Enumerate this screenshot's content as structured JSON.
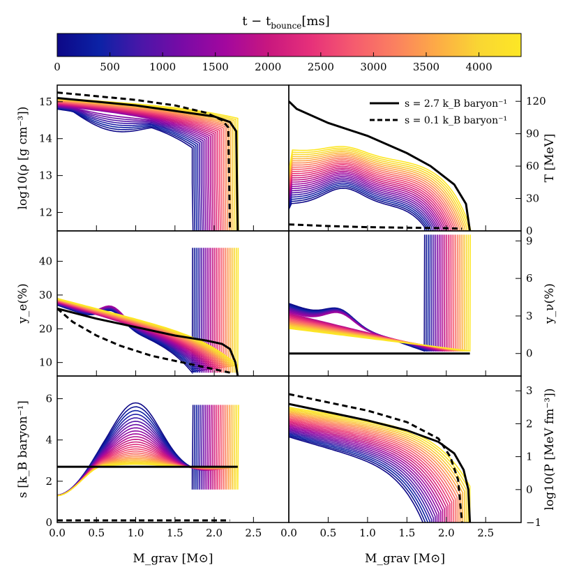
{
  "colorbar": {
    "title_prefix": "t − t",
    "title_sub": "bounce",
    "title_suffix": "[ms]",
    "range": [
      0,
      4400
    ],
    "ticks": [
      "0",
      "500",
      "1000",
      "1500",
      "2000",
      "2500",
      "3000",
      "3500",
      "4000"
    ],
    "tick_values": [
      0,
      500,
      1000,
      1500,
      2000,
      2500,
      3000,
      3500,
      4000
    ],
    "colors": [
      "#0d0887",
      "#0c22a6",
      "#4b16a8",
      "#7a0aa6",
      "#a3089e",
      "#c8177f",
      "#e6307a",
      "#f55a6f",
      "#fb8060",
      "#fdab46",
      "#f9d633",
      "#fde725"
    ]
  },
  "legend": {
    "entries": [
      {
        "label": "s = 2.7 k_B baryon⁻¹",
        "style": "solid"
      },
      {
        "label": "s = 0.1 k_B baryon⁻¹",
        "style": "dashed"
      }
    ]
  },
  "axes": {
    "xlabel": "M_grav [M⊙]",
    "x_ticks": [
      "0.0",
      "0.5",
      "1.0",
      "1.5",
      "2.0",
      "2.5"
    ],
    "x_tick_values": [
      0.0,
      0.5,
      1.0,
      1.5,
      2.0,
      2.5
    ],
    "xlim": [
      0,
      2.95
    ]
  },
  "chart_data": [
    {
      "type": "line",
      "panel": "top-left",
      "ylabel": "log10(ρ [g cm⁻³])",
      "ylim": [
        11.5,
        15.45
      ],
      "y_ticks": [
        "12",
        "13",
        "14",
        "15"
      ],
      "y_tick_values": [
        12,
        13,
        14,
        15
      ],
      "series": [
        {
          "style": "solid",
          "x": [
            0,
            0.5,
            1.0,
            1.5,
            2.0,
            2.2,
            2.28,
            2.3
          ],
          "y": [
            15.1,
            15.0,
            14.9,
            14.75,
            14.6,
            14.45,
            14.2,
            11.5
          ]
        },
        {
          "style": "dashed",
          "x": [
            0,
            0.5,
            1.0,
            1.5,
            1.9,
            2.1,
            2.18,
            2.2
          ],
          "y": [
            15.25,
            15.15,
            15.05,
            14.9,
            14.7,
            14.5,
            14.3,
            11.5
          ]
        }
      ]
    },
    {
      "type": "line",
      "panel": "top-right",
      "ylabel": "T [MeV]",
      "ylim": [
        0,
        135
      ],
      "y_ticks": [
        "0",
        "30",
        "60",
        "90",
        "120"
      ],
      "y_tick_values": [
        0,
        30,
        60,
        90,
        120
      ],
      "series": [
        {
          "style": "solid",
          "x": [
            0,
            0.1,
            0.5,
            1.0,
            1.5,
            1.8,
            2.1,
            2.25,
            2.3
          ],
          "y": [
            120,
            113,
            100,
            88,
            72,
            60,
            43,
            25,
            0
          ]
        },
        {
          "style": "dashed",
          "x": [
            0,
            0.5,
            1.0,
            1.5,
            2.0,
            2.2
          ],
          "y": [
            6,
            4.5,
            3.5,
            3,
            2.5,
            2
          ]
        }
      ]
    },
    {
      "type": "line",
      "panel": "middle-left",
      "ylabel": "y_e(%)",
      "ylim": [
        6,
        49
      ],
      "y_ticks": [
        "10",
        "20",
        "30",
        "40"
      ],
      "y_tick_values": [
        10,
        20,
        30,
        40
      ],
      "series": [
        {
          "style": "solid",
          "x": [
            0,
            0.5,
            1.0,
            1.5,
            1.9,
            2.1,
            2.2,
            2.27,
            2.3
          ],
          "y": [
            26,
            23,
            20.5,
            18,
            16.5,
            15.5,
            14,
            10,
            6
          ]
        },
        {
          "style": "dashed",
          "x": [
            0,
            0.2,
            0.5,
            0.8,
            1.2,
            1.6,
            2.0,
            2.2
          ],
          "y": [
            26,
            22,
            18,
            15,
            12,
            10,
            8,
            7
          ]
        }
      ]
    },
    {
      "type": "line",
      "panel": "middle-right",
      "ylabel": "y_ν(%)",
      "ylim": [
        -1.8,
        9.8
      ],
      "y_ticks": [
        "0",
        "3",
        "6",
        "9"
      ],
      "y_tick_values": [
        0,
        3,
        6,
        9
      ],
      "series": [
        {
          "style": "solid",
          "x": [
            0,
            2.3
          ],
          "y": [
            0,
            0
          ]
        }
      ]
    },
    {
      "type": "line",
      "panel": "bottom-left",
      "ylabel": "s [k_B baryon⁻¹]",
      "ylim": [
        0,
        7.1
      ],
      "y_ticks": [
        "0",
        "2",
        "4",
        "6"
      ],
      "y_tick_values": [
        0,
        2,
        4,
        6
      ],
      "series": [
        {
          "style": "solid",
          "x": [
            0,
            2.3
          ],
          "y": [
            2.7,
            2.7
          ]
        },
        {
          "style": "dashed",
          "x": [
            0,
            2.2
          ],
          "y": [
            0.1,
            0.1
          ]
        }
      ]
    },
    {
      "type": "line",
      "panel": "bottom-right",
      "ylabel": "log10(P [MeV fm⁻³])",
      "ylim": [
        -1,
        3.45
      ],
      "y_ticks": [
        "−1",
        "0",
        "1",
        "2",
        "3"
      ],
      "y_tick_values": [
        -1,
        0,
        1,
        2,
        3
      ],
      "series": [
        {
          "style": "solid",
          "x": [
            0,
            0.5,
            1.0,
            1.5,
            1.9,
            2.1,
            2.22,
            2.28,
            2.3
          ],
          "y": [
            2.6,
            2.35,
            2.1,
            1.8,
            1.45,
            1.1,
            0.6,
            0,
            -1
          ]
        },
        {
          "style": "dashed",
          "x": [
            0,
            0.5,
            1.0,
            1.5,
            1.9,
            2.05,
            2.15,
            2.2
          ],
          "y": [
            2.9,
            2.65,
            2.4,
            2.05,
            1.55,
            1.0,
            0.3,
            -1
          ]
        }
      ]
    }
  ]
}
